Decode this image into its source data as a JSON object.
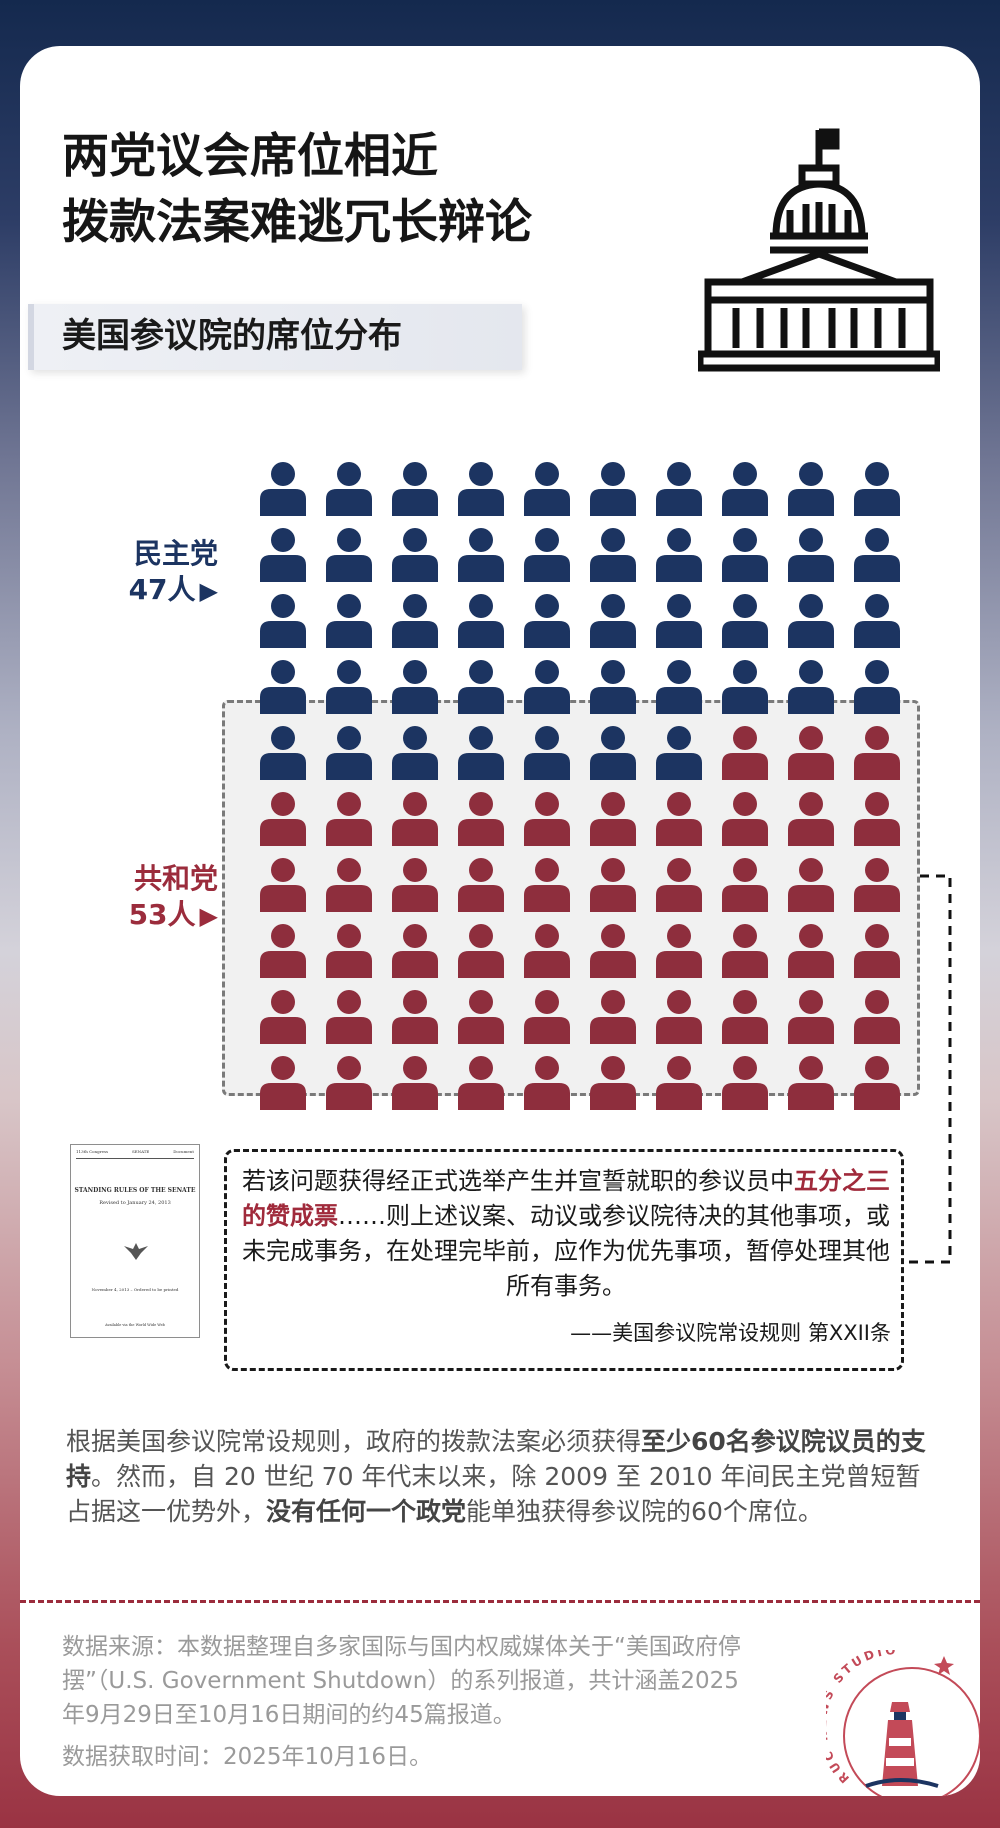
{
  "title": "两党议会席位相近\n拨款法案难逃冗长辩论",
  "subtitle": "美国参议院的席位分布",
  "democrats": {
    "label": "民主党",
    "count": "47人",
    "seats": 47,
    "color": "#1c3461"
  },
  "republicans": {
    "label": "共和党",
    "count": "53人",
    "seats": 53,
    "color": "#8e2e3d"
  },
  "arrow": "▶",
  "seat_grid": {
    "columns": 10,
    "rows": 10
  },
  "document_thumb": {
    "congress": "113th Congress",
    "chamber": "SENATE",
    "document": "Document",
    "title": "STANDING RULES OF THE SENATE",
    "revised": "Revised to January 24, 2013",
    "ordered": "November 4, 2013 – Ordered to be printed",
    "available": "Available via the World Wide Web"
  },
  "quote": {
    "pre": "若该问题获得经正式选举产生并宣誓就职的参议员中",
    "highlight": "五分之三的赞成票",
    "post": "……则上述议案、动议或参议院待决的其他事项，或未完成事务，在处理完毕前，应作为优先事项，暂停处理其他所有事务。",
    "source": "——美国参议院常设规则 第XXII条"
  },
  "body": {
    "p1": "根据美国参议院常设规则，政府的拨款法案必须获得",
    "b1": "至少60名参议院议员的支持",
    "p2": "。然而，自 20 世纪 70 年代末以来，除 2009 至 2010 年间民主党曾短暂占据这一优势外，",
    "b2": "没有任何一个政党",
    "p3": "能单独获得参议院的60个席位。"
  },
  "source_text": "数据来源：本数据整理自多家国际与国内权威媒体关于“美国政府停摆”（U.S. Government Shutdown）的系列报道，共计涵盖2025年9月29日至10月16日期间的约45篇报道。",
  "fetch_time": "数据获取时间：2025年10月16日。",
  "logo_text": "RUC NEWS STUDIO"
}
